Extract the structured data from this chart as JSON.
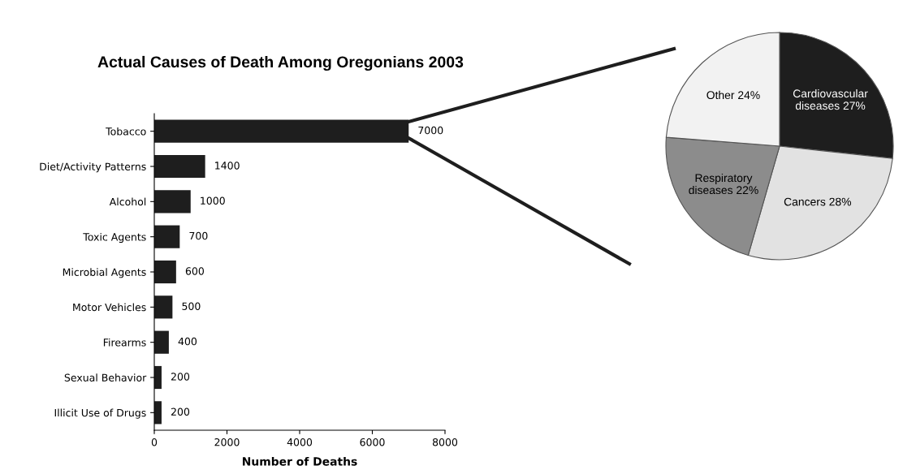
{
  "chart_data": [
    {
      "type": "bar",
      "orientation": "horizontal",
      "title": "Actual Causes of Death Among Oregonians 2003",
      "xlabel": "Number of Deaths",
      "categories": [
        "Tobacco",
        "Diet/Activity Patterns",
        "Alcohol",
        "Toxic Agents",
        "Microbial Agents",
        "Motor Vehicles",
        "Firearms",
        "Sexual Behavior",
        "Illicit Use of Drugs"
      ],
      "values": [
        7000,
        1400,
        1000,
        700,
        600,
        500,
        400,
        200,
        200
      ],
      "color": "#1e1e1e",
      "xlim": [
        0,
        8000
      ],
      "xticks": [
        0,
        2000,
        4000,
        6000,
        8000
      ],
      "data_labels": true,
      "grid": false,
      "legend": false
    },
    {
      "type": "pie",
      "categories": [
        "Cardiovascular diseases",
        "Cancers",
        "Respiratory diseases",
        "Other"
      ],
      "values": [
        27,
        28,
        22,
        24
      ],
      "value_labels": [
        "27%",
        "28%",
        "22%",
        "24%"
      ],
      "colors": [
        "#1e1e1e",
        "#e2e2e2",
        "#8c8c8c",
        "#f2f2f2"
      ],
      "legend": false
    }
  ]
}
